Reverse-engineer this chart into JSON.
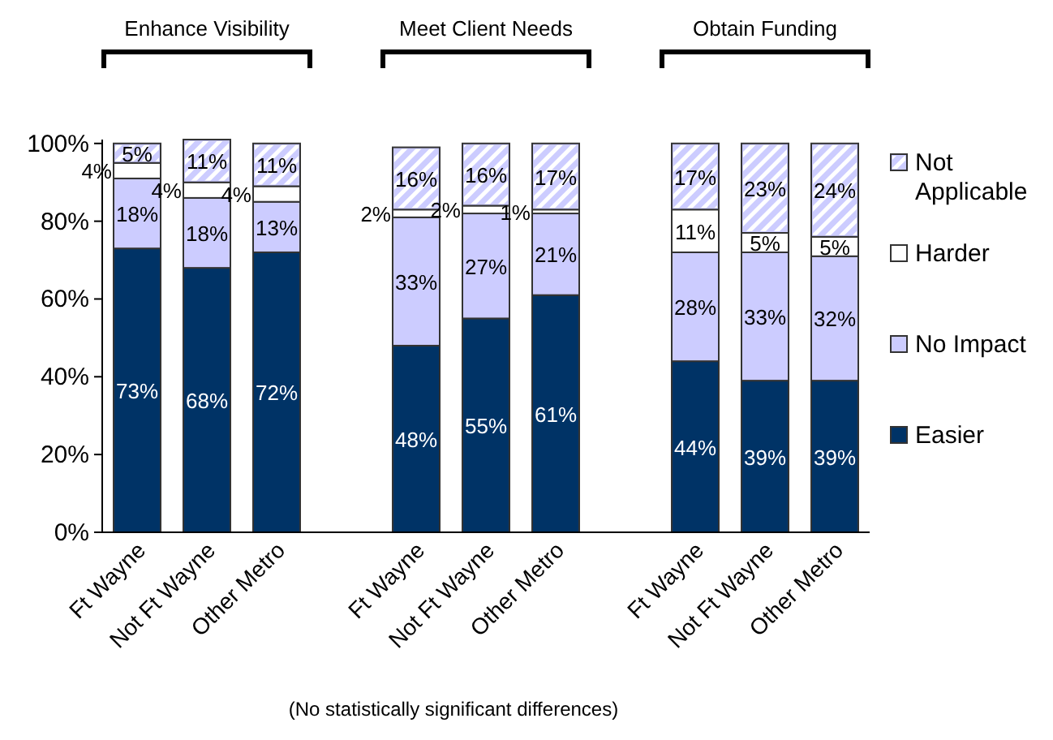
{
  "chart_data": {
    "type": "bar",
    "stacked": true,
    "legend": "right",
    "grid": false,
    "categories": [
      "Ft Wayne",
      "Not Ft Wayne",
      "Other Metro",
      "Ft Wayne",
      "Not Ft Wayne",
      "Other Metro",
      "Ft Wayne",
      "Not Ft Wayne",
      "Other Metro"
    ],
    "series": [
      {
        "name": "Easier",
        "color": "#003366",
        "values": [
          73,
          68,
          72,
          48,
          55,
          61,
          44,
          39,
          39
        ],
        "value_labels": [
          "73%",
          "68%",
          "72%",
          "48%",
          "55%",
          "61%",
          "44%",
          "39%",
          "39%"
        ]
      },
      {
        "name": "No Impact",
        "color": "#ccccff",
        "values": [
          18,
          18,
          13,
          33,
          27,
          21,
          28,
          33,
          32
        ],
        "value_labels": [
          "18%",
          "18%",
          "13%",
          "33%",
          "27%",
          "21%",
          "28%",
          "33%",
          "32%"
        ]
      },
      {
        "name": "Harder",
        "color": "#ffffff",
        "values": [
          4,
          4,
          4,
          2,
          2,
          1,
          11,
          5,
          5
        ],
        "value_labels": [
          "4%",
          "4%",
          "4%",
          "2%",
          "2%",
          "1%",
          "11%",
          "5%",
          "5%"
        ]
      },
      {
        "name": "Not Applicable",
        "color": "#ccccff",
        "values": [
          5,
          11,
          11,
          16,
          16,
          17,
          17,
          23,
          24
        ],
        "value_labels": [
          "5%",
          "11%",
          "11%",
          "16%",
          "16%",
          "17%",
          "17%",
          "23%",
          "24%"
        ]
      }
    ],
    "ylim": [
      0,
      101
    ],
    "yticks": [
      {
        "value": 0,
        "label": "0%"
      },
      {
        "value": 20,
        "label": "20%"
      },
      {
        "value": 40,
        "label": "40%"
      },
      {
        "value": 60,
        "label": "60%"
      },
      {
        "value": 80,
        "label": "80%"
      },
      {
        "value": 100,
        "label": "100%"
      }
    ],
    "annotations": [
      "Enhance Visibility",
      "Meet Client Needs",
      "Obtain Funding",
      "(No statistically significant differences)"
    ]
  }
}
